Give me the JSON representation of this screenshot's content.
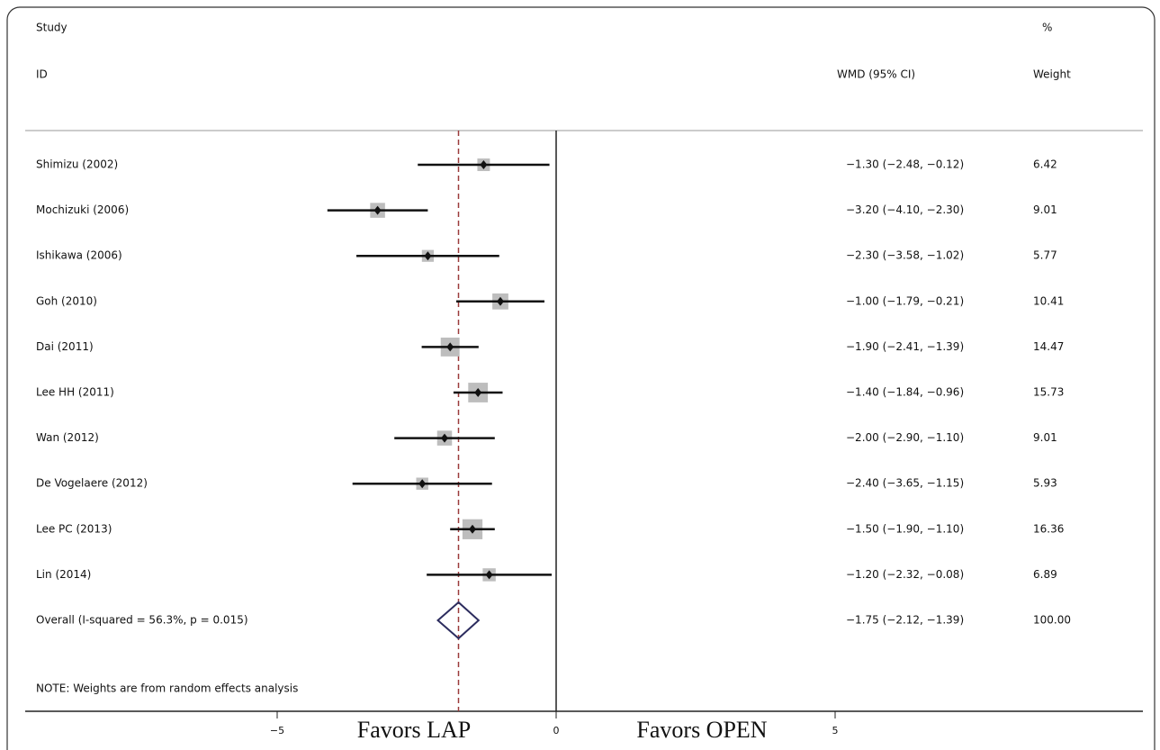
{
  "chart_data": {
    "type": "forest",
    "header": {
      "study": "Study",
      "id": "ID",
      "ci": "WMD (95% CI)",
      "pct": "%",
      "weight": "Weight"
    },
    "categories": [
      "Shimizu (2002)",
      "Mochizuki (2006)",
      "Ishikawa (2006)",
      "Goh (2010)",
      "Dai (2011)",
      "Lee HH (2011)",
      "Wan (2012)",
      "De Vogelaere (2012)",
      "Lee PC (2013)",
      "Lin (2014)"
    ],
    "values": [
      -1.3,
      -3.2,
      -2.3,
      -1.0,
      -1.9,
      -1.4,
      -2.0,
      -2.4,
      -1.5,
      -1.2
    ],
    "lower": [
      -2.48,
      -4.1,
      -3.58,
      -1.79,
      -2.41,
      -1.84,
      -2.9,
      -3.65,
      -1.9,
      -2.32
    ],
    "upper": [
      -0.12,
      -2.3,
      -1.02,
      -0.21,
      -1.39,
      -0.96,
      -1.1,
      -1.15,
      -1.1,
      -0.08
    ],
    "ci_labels": [
      "−1.30 (−2.48, −0.12)",
      "−3.20 (−4.10, −2.30)",
      "−2.30 (−3.58, −1.02)",
      "−1.00 (−1.79, −0.21)",
      "−1.90 (−2.41, −1.39)",
      "−1.40 (−1.84, −0.96)",
      "−2.00 (−2.90, −1.10)",
      "−2.40 (−3.65, −1.15)",
      "−1.50 (−1.90, −1.10)",
      "−1.20 (−2.32, −0.08)"
    ],
    "weights": [
      6.42,
      9.01,
      5.77,
      10.41,
      14.47,
      15.73,
      9.01,
      5.93,
      16.36,
      6.89
    ],
    "weight_labels": [
      "6.42",
      "9.01",
      "5.77",
      "10.41",
      "14.47",
      "15.73",
      "9.01",
      "5.93",
      "16.36",
      "6.89"
    ],
    "overall": {
      "label": "Overall  (I-squared = 56.3%, p = 0.015)",
      "value": -1.75,
      "lower": -2.12,
      "upper": -1.39,
      "ci_label": "−1.75 (−2.12, −1.39)",
      "weight": 100,
      "weight_label": "100.00"
    },
    "note": "NOTE: Weights are from random effects analysis",
    "xlim": [
      -5,
      5
    ],
    "xticks": [
      {
        "value": -5,
        "label": "−5"
      },
      0,
      5
    ],
    "x_labels": {
      "left": "Favors LAP",
      "right": "Favors OPEN"
    }
  }
}
